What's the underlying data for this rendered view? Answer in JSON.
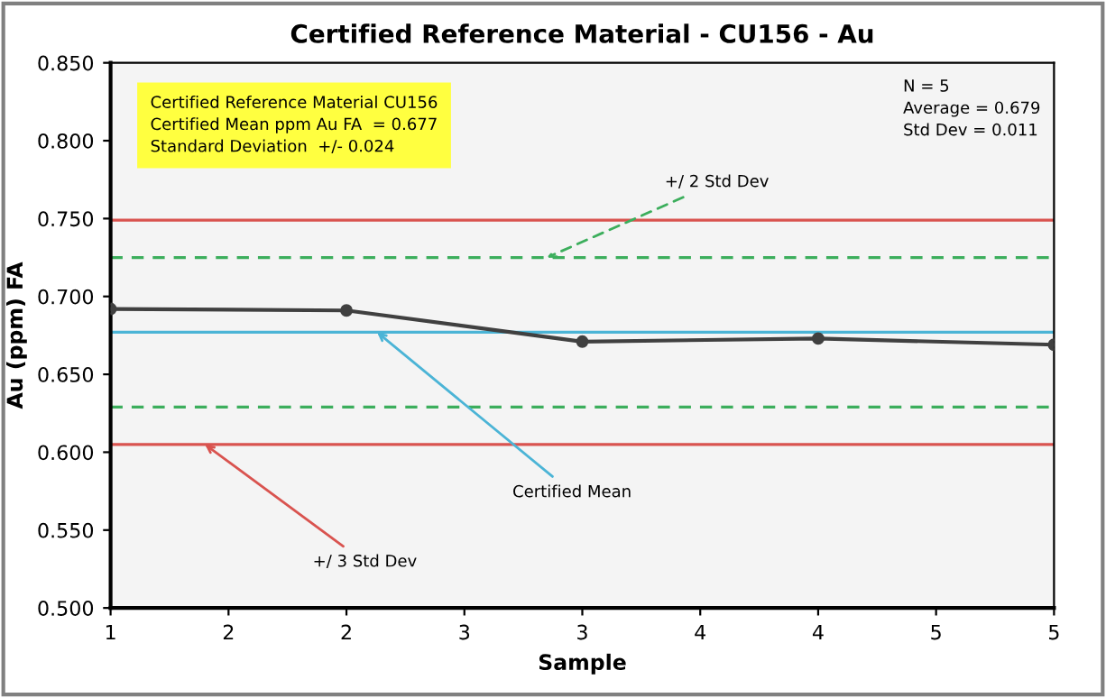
{
  "chart_data": {
    "type": "line",
    "title": "Certified Reference Material - CU156 - Au",
    "xlabel": "Sample",
    "ylabel": "Au (ppm) FA",
    "x": [
      1,
      2,
      3,
      4,
      5
    ],
    "series": [
      {
        "color": "#404040",
        "values": [
          0.692,
          0.691,
          0.671,
          0.673,
          0.669
        ]
      }
    ],
    "xlim": [
      1,
      5
    ],
    "xticks": [
      1,
      {
        "value": 1.5,
        "label": "2"
      },
      2,
      {
        "value": 2.5,
        "label": "3"
      },
      3,
      {
        "value": 3.5,
        "label": "4"
      },
      4,
      {
        "value": 4.5,
        "label": "5"
      },
      5
    ],
    "ylim": [
      0.5,
      0.85
    ],
    "yticks": [
      {
        "value": 0.5,
        "label": "0.500"
      },
      {
        "value": 0.55,
        "label": "0.550"
      },
      {
        "value": 0.6,
        "label": "0.600"
      },
      {
        "value": 0.65,
        "label": "0.650"
      },
      {
        "value": 0.7,
        "label": "0.700"
      },
      {
        "value": 0.75,
        "label": "0.750"
      },
      {
        "value": 0.8,
        "label": "0.800"
      },
      {
        "value": 0.85,
        "label": "0.850"
      }
    ],
    "marker": "circle",
    "line_style": "solid",
    "grid": false,
    "legend": false,
    "ref_lines": [
      {
        "axis": "y",
        "value": 0.749,
        "color": "#d9534f",
        "line_style": "solid"
      },
      {
        "axis": "y",
        "value": 0.605,
        "color": "#d9534f",
        "line_style": "solid"
      },
      {
        "axis": "y",
        "value": 0.725,
        "color": "#3cae5c",
        "line_style": "dashed"
      },
      {
        "axis": "y",
        "value": 0.629,
        "color": "#3cae5c",
        "line_style": "dashed"
      },
      {
        "axis": "y",
        "value": 0.677,
        "color": "#4bb4d6",
        "line_style": "solid"
      }
    ],
    "annotations": [
      "Certified Reference Material CU156\nCertified Mean ppm Au FA  = 0.677\nStandard Deviation  +/- 0.024",
      "N = 5\nAverage = 0.679\nStd Dev = 0.011",
      {
        "text": "+/ 2 Std Dev",
        "x": 2.85,
        "y": 0.725
      },
      {
        "text": "Certified Mean",
        "x": 2.13,
        "y": 0.677
      },
      {
        "text": "+/ 3 Std Dev",
        "x": 1.4,
        "y": 0.605
      }
    ]
  }
}
